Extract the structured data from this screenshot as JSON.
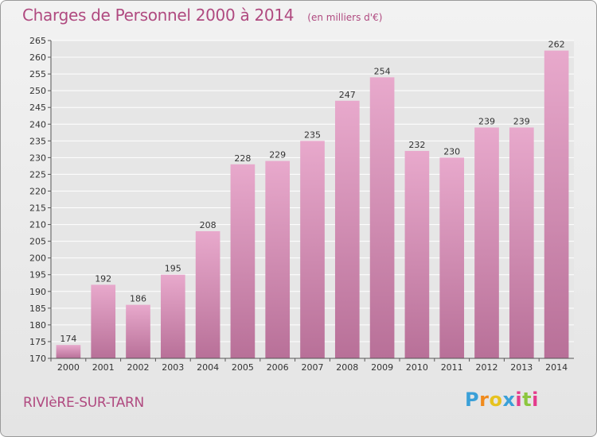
{
  "title": "Charges de Personnel 2000 à 2014",
  "unit_note": "(en milliers d'€)",
  "place": "RIVIèRE-SUR-TARN",
  "logo": {
    "letters": [
      "P",
      "r",
      "o",
      "x",
      "i",
      "t",
      "i"
    ],
    "colors": [
      "#3aa0d8",
      "#f08a1c",
      "#e6c21f",
      "#3aa0d8",
      "#e43b8c",
      "#8cc63e",
      "#e43b8c"
    ]
  },
  "colors": {
    "bar": "#d98bb8",
    "accent": "#b04a80"
  },
  "chart_data": {
    "type": "bar",
    "title": "Charges de Personnel 2000 à 2014",
    "categories": [
      "2000",
      "2001",
      "2002",
      "2003",
      "2004",
      "2005",
      "2006",
      "2007",
      "2008",
      "2009",
      "2010",
      "2011",
      "2012",
      "2013",
      "2014"
    ],
    "values": [
      174,
      192,
      186,
      195,
      208,
      228,
      229,
      235,
      247,
      254,
      232,
      230,
      239,
      239,
      262
    ],
    "ylim": [
      170,
      265
    ],
    "yticks": [
      170,
      175,
      180,
      185,
      190,
      195,
      200,
      205,
      210,
      215,
      220,
      225,
      230,
      235,
      240,
      245,
      250,
      255,
      260,
      265
    ],
    "grid": true
  }
}
